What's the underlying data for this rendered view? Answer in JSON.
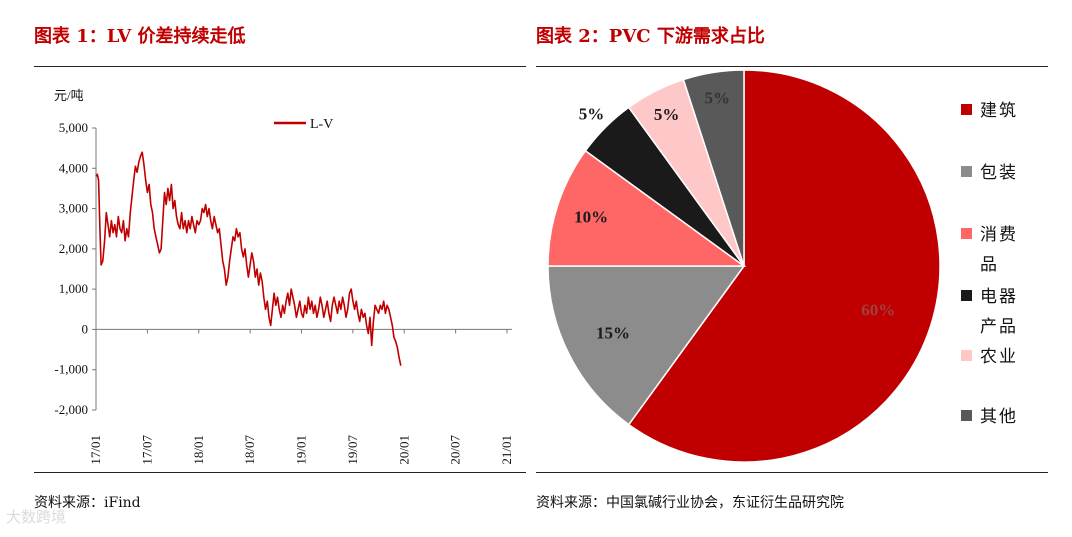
{
  "watermark": "大数跨境",
  "left_panel": {
    "title": "图表 1：LV 价差持续走低",
    "source": "资料来源：iFind"
  },
  "right_panel": {
    "title": "图表 2：PVC 下游需求占比",
    "source": "资料来源：中国氯碱行业协会，东证衍生品研究院"
  },
  "chart_data": [
    {
      "type": "line",
      "title": "图表 1：LV 价差持续走低",
      "ylabel": "元/吨",
      "xlabel": "",
      "ylim": [
        -2000,
        5000
      ],
      "yticks": [
        -2000,
        -1000,
        0,
        1000,
        2000,
        3000,
        4000,
        5000
      ],
      "ytick_labels": [
        "-2,000",
        "-1,000",
        "0",
        "1,000",
        "2,000",
        "3,000",
        "4,000",
        "5,000"
      ],
      "xticks": [
        "17/01",
        "17/07",
        "18/01",
        "18/07",
        "19/01",
        "19/07",
        "20/01",
        "20/07",
        "21/01"
      ],
      "legend": "top-center",
      "grid": false,
      "color": "#c00000",
      "series": [
        {
          "name": "L-V",
          "x_step": "month-fraction",
          "points": [
            [
              0.0,
              3800
            ],
            [
              0.15,
              3850
            ],
            [
              0.3,
              3700
            ],
            [
              0.45,
              2500
            ],
            [
              0.6,
              1600
            ],
            [
              0.8,
              1700
            ],
            [
              1.0,
              2200
            ],
            [
              1.2,
              2900
            ],
            [
              1.4,
              2600
            ],
            [
              1.6,
              2300
            ],
            [
              1.8,
              2700
            ],
            [
              2.0,
              2400
            ],
            [
              2.2,
              2600
            ],
            [
              2.4,
              2300
            ],
            [
              2.6,
              2800
            ],
            [
              2.8,
              2500
            ],
            [
              3.0,
              2400
            ],
            [
              3.2,
              2700
            ],
            [
              3.4,
              2200
            ],
            [
              3.6,
              2500
            ],
            [
              3.8,
              2300
            ],
            [
              4.0,
              2900
            ],
            [
              4.2,
              3300
            ],
            [
              4.4,
              3700
            ],
            [
              4.6,
              4050
            ],
            [
              4.8,
              3900
            ],
            [
              5.0,
              4150
            ],
            [
              5.2,
              4300
            ],
            [
              5.4,
              4400
            ],
            [
              5.6,
              4100
            ],
            [
              5.8,
              3700
            ],
            [
              6.0,
              3400
            ],
            [
              6.2,
              3600
            ],
            [
              6.4,
              3100
            ],
            [
              6.6,
              2900
            ],
            [
              6.8,
              2500
            ],
            [
              7.0,
              2300
            ],
            [
              7.2,
              2100
            ],
            [
              7.4,
              1900
            ],
            [
              7.6,
              2000
            ],
            [
              7.8,
              2700
            ],
            [
              8.0,
              3400
            ],
            [
              8.2,
              3100
            ],
            [
              8.4,
              3500
            ],
            [
              8.6,
              3200
            ],
            [
              8.8,
              3600
            ],
            [
              9.0,
              3000
            ],
            [
              9.2,
              3200
            ],
            [
              9.4,
              2800
            ],
            [
              9.6,
              2600
            ],
            [
              9.8,
              2500
            ],
            [
              10.0,
              2900
            ],
            [
              10.2,
              2500
            ],
            [
              10.4,
              2700
            ],
            [
              10.6,
              2400
            ],
            [
              10.8,
              2700
            ],
            [
              11.0,
              2500
            ],
            [
              11.2,
              2800
            ],
            [
              11.4,
              2600
            ],
            [
              11.6,
              2400
            ],
            [
              11.8,
              2700
            ],
            [
              12.0,
              2600
            ],
            [
              12.2,
              2700
            ],
            [
              12.4,
              3000
            ],
            [
              12.6,
              2900
            ],
            [
              12.8,
              3100
            ],
            [
              13.0,
              2800
            ],
            [
              13.2,
              3000
            ],
            [
              13.4,
              2700
            ],
            [
              13.6,
              2500
            ],
            [
              13.8,
              2800
            ],
            [
              14.0,
              2600
            ],
            [
              14.2,
              2400
            ],
            [
              14.4,
              2500
            ],
            [
              14.6,
              2100
            ],
            [
              14.8,
              1700
            ],
            [
              15.0,
              1500
            ],
            [
              15.2,
              1100
            ],
            [
              15.4,
              1300
            ],
            [
              15.6,
              1700
            ],
            [
              15.8,
              2000
            ],
            [
              16.0,
              2300
            ],
            [
              16.2,
              2200
            ],
            [
              16.4,
              2500
            ],
            [
              16.6,
              2300
            ],
            [
              16.8,
              2400
            ],
            [
              17.0,
              2000
            ],
            [
              17.2,
              1800
            ],
            [
              17.4,
              2000
            ],
            [
              17.6,
              1600
            ],
            [
              17.8,
              1300
            ],
            [
              18.0,
              1600
            ],
            [
              18.2,
              1900
            ],
            [
              18.4,
              1700
            ],
            [
              18.6,
              1300
            ],
            [
              18.8,
              1500
            ],
            [
              19.0,
              1100
            ],
            [
              19.2,
              1400
            ],
            [
              19.4,
              1200
            ],
            [
              19.6,
              800
            ],
            [
              19.8,
              500
            ],
            [
              20.0,
              700
            ],
            [
              20.2,
              300
            ],
            [
              20.4,
              100
            ],
            [
              20.6,
              500
            ],
            [
              20.8,
              900
            ],
            [
              21.0,
              600
            ],
            [
              21.2,
              800
            ],
            [
              21.4,
              500
            ],
            [
              21.6,
              300
            ],
            [
              21.8,
              600
            ],
            [
              22.0,
              400
            ],
            [
              22.2,
              700
            ],
            [
              22.4,
              900
            ],
            [
              22.6,
              600
            ],
            [
              22.8,
              1000
            ],
            [
              23.0,
              800
            ],
            [
              23.2,
              600
            ],
            [
              23.4,
              300
            ],
            [
              23.6,
              500
            ],
            [
              23.8,
              700
            ],
            [
              24.0,
              400
            ],
            [
              24.2,
              300
            ],
            [
              24.4,
              600
            ],
            [
              24.6,
              400
            ],
            [
              24.8,
              800
            ],
            [
              25.0,
              500
            ],
            [
              25.2,
              700
            ],
            [
              25.4,
              400
            ],
            [
              25.6,
              600
            ],
            [
              25.8,
              300
            ],
            [
              26.0,
              500
            ],
            [
              26.2,
              800
            ],
            [
              26.4,
              600
            ],
            [
              26.6,
              300
            ],
            [
              26.8,
              500
            ],
            [
              27.0,
              700
            ],
            [
              27.2,
              400
            ],
            [
              27.4,
              200
            ],
            [
              27.6,
              600
            ],
            [
              27.8,
              800
            ],
            [
              28.0,
              600
            ],
            [
              28.2,
              400
            ],
            [
              28.4,
              700
            ],
            [
              28.6,
              500
            ],
            [
              28.8,
              800
            ],
            [
              29.0,
              600
            ],
            [
              29.2,
              300
            ],
            [
              29.4,
              500
            ],
            [
              29.6,
              900
            ],
            [
              29.8,
              1000
            ],
            [
              30.0,
              700
            ],
            [
              30.2,
              500
            ],
            [
              30.4,
              700
            ],
            [
              30.6,
              400
            ],
            [
              30.8,
              200
            ],
            [
              31.0,
              500
            ],
            [
              31.2,
              300
            ],
            [
              31.4,
              400
            ],
            [
              31.6,
              100
            ],
            [
              31.8,
              -100
            ],
            [
              32.0,
              300
            ],
            [
              32.2,
              -400
            ],
            [
              32.4,
              200
            ],
            [
              32.6,
              600
            ],
            [
              32.8,
              500
            ],
            [
              33.0,
              400
            ],
            [
              33.2,
              600
            ],
            [
              33.4,
              500
            ],
            [
              33.6,
              700
            ],
            [
              33.8,
              400
            ],
            [
              34.0,
              600
            ],
            [
              34.2,
              500
            ],
            [
              34.4,
              300
            ],
            [
              34.6,
              100
            ],
            [
              34.8,
              -200
            ],
            [
              35.0,
              -300
            ],
            [
              35.2,
              -450
            ],
            [
              35.4,
              -700
            ],
            [
              35.6,
              -900
            ]
          ]
        }
      ]
    },
    {
      "type": "pie",
      "title": "图表 2：PVC 下游需求占比",
      "legend": "right",
      "slices": [
        {
          "label": "建筑",
          "value": 60,
          "display": "60%",
          "color": "#c00000",
          "text_color": "#a04040"
        },
        {
          "label": "包装",
          "value": 15,
          "display": "15%",
          "color": "#8c8c8c",
          "text_color": "#1a1a1a"
        },
        {
          "label": "消费品",
          "value": 10,
          "display": "10%",
          "color": "#ff6666",
          "text_color": "#1a1a1a"
        },
        {
          "label": "电器产品",
          "value": 5,
          "display": "5%",
          "color": "#1a1a1a",
          "text_color": "#1a1a1a"
        },
        {
          "label": "农业",
          "value": 5,
          "display": "5%",
          "color": "#ffc8c8",
          "text_color": "#1a1a1a"
        },
        {
          "label": "其他",
          "value": 5,
          "display": "5%",
          "color": "#595959",
          "text_color": "#333333"
        }
      ]
    }
  ]
}
